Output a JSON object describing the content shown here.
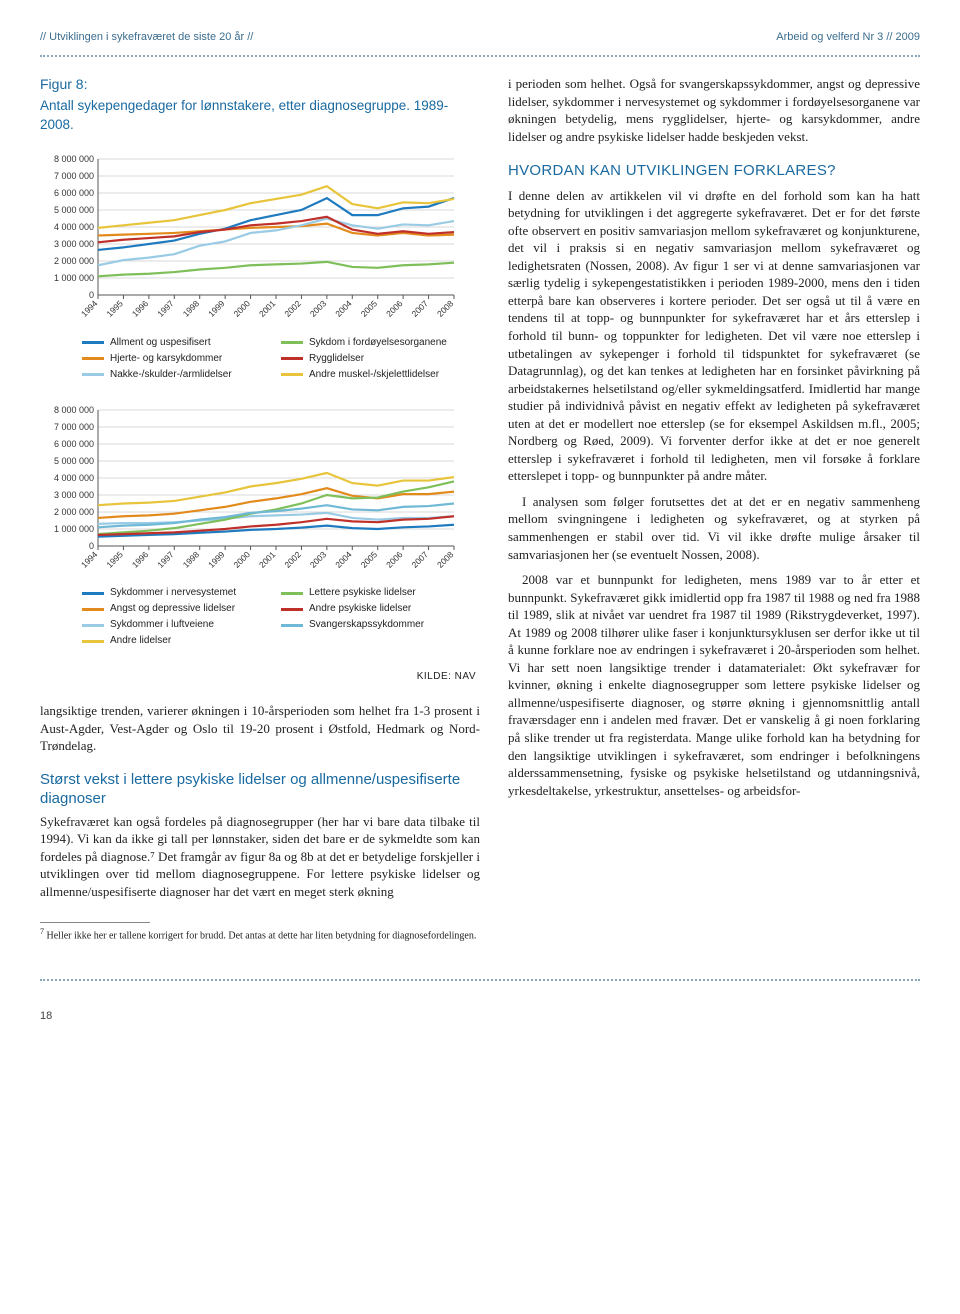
{
  "header": {
    "left": "// Utviklingen i sykefraværet de siste 20 år //",
    "right": "Arbeid og velferd Nr 3 // 2009"
  },
  "figure": {
    "title": "Figur 8:",
    "subtitle": "Antall sykepengedager for lønnstakere, etter diagnosegruppe. 1989-2008.",
    "kilde_label": "KILDE: NAV",
    "chart_a": {
      "type": "line",
      "ylim": [
        0,
        8000000
      ],
      "ytick_step": 1000000,
      "y_labels": [
        "0",
        "1 000 000",
        "2 000 000",
        "3 000 000",
        "4 000 000",
        "5 000 000",
        "6 000 000",
        "7 000 000",
        "8 000 000"
      ],
      "x_labels": [
        "1994",
        "1995",
        "1996",
        "1997",
        "1998",
        "1999",
        "2000",
        "2001",
        "2002",
        "2003",
        "2004",
        "2005",
        "2006",
        "2007",
        "2008"
      ],
      "grid_color": "#d9d9d9",
      "axis_color": "#555",
      "series": [
        {
          "label": "Allment og uspesifisert",
          "color": "#1f7bbf",
          "values": [
            2650000,
            2800000,
            3000000,
            3200000,
            3600000,
            3900000,
            4400000,
            4700000,
            5000000,
            5700000,
            4700000,
            4700000,
            5100000,
            5200000,
            5700000
          ]
        },
        {
          "label": "Hjerte- og karsykdommer",
          "color": "#e28b1c",
          "values": [
            3500000,
            3550000,
            3600000,
            3650000,
            3750000,
            3850000,
            3950000,
            4000000,
            4050000,
            4200000,
            3650000,
            3500000,
            3650000,
            3500000,
            3550000
          ]
        },
        {
          "label": "Nakke-/skulder-/armlidelser",
          "color": "#99cbe4",
          "values": [
            1750000,
            2050000,
            2200000,
            2400000,
            2900000,
            3150000,
            3650000,
            3800000,
            4100000,
            4500000,
            4100000,
            3900000,
            4150000,
            4100000,
            4350000
          ]
        },
        {
          "label": "Sykdom i fordøyelsesorganene",
          "color": "#7fbf5a",
          "values": [
            1100000,
            1200000,
            1250000,
            1350000,
            1500000,
            1600000,
            1750000,
            1800000,
            1850000,
            1950000,
            1650000,
            1600000,
            1750000,
            1800000,
            1900000
          ]
        },
        {
          "label": "Rygglidelser",
          "color": "#c0302a",
          "values": [
            3100000,
            3250000,
            3350000,
            3450000,
            3700000,
            3850000,
            4100000,
            4200000,
            4350000,
            4600000,
            3850000,
            3600000,
            3750000,
            3600000,
            3700000
          ]
        },
        {
          "label": "Andre muskel-/skjelettlidelser",
          "color": "#e8c43b",
          "values": [
            3950000,
            4100000,
            4250000,
            4400000,
            4700000,
            5000000,
            5400000,
            5650000,
            5900000,
            6400000,
            5350000,
            5100000,
            5450000,
            5400000,
            5650000
          ]
        }
      ]
    },
    "chart_b": {
      "type": "line",
      "ylim": [
        0,
        8000000
      ],
      "ytick_step": 1000000,
      "y_labels": [
        "0",
        "1 000 000",
        "2 000 000",
        "3 000 000",
        "4 000 000",
        "5 000 000",
        "6 000 000",
        "7 000 000",
        "8 000 000"
      ],
      "x_labels": [
        "1994",
        "1995",
        "1996",
        "1997",
        "1998",
        "1999",
        "2000",
        "2001",
        "2002",
        "2003",
        "2004",
        "2005",
        "2006",
        "2007",
        "2008"
      ],
      "grid_color": "#d9d9d9",
      "axis_color": "#555",
      "series": [
        {
          "label": "Sykdommer i nervesystemet",
          "color": "#1f7bbf",
          "values": [
            550000,
            600000,
            650000,
            700000,
            780000,
            850000,
            950000,
            1000000,
            1080000,
            1200000,
            1050000,
            1000000,
            1100000,
            1150000,
            1250000
          ]
        },
        {
          "label": "Angst og depressive lidelser",
          "color": "#e28b1c",
          "values": [
            1650000,
            1750000,
            1800000,
            1900000,
            2100000,
            2300000,
            2600000,
            2800000,
            3050000,
            3400000,
            2950000,
            2800000,
            3050000,
            3050000,
            3200000
          ]
        },
        {
          "label": "Sykdommer i luftveiene",
          "color": "#99cbe4",
          "values": [
            1300000,
            1350000,
            1350000,
            1400000,
            1500000,
            1600000,
            1750000,
            1800000,
            1850000,
            1950000,
            1650000,
            1550000,
            1650000,
            1650000,
            1750000
          ]
        },
        {
          "label": "Andre lidelser",
          "color": "#e8c43b",
          "values": [
            2400000,
            2500000,
            2550000,
            2650000,
            2900000,
            3150000,
            3500000,
            3700000,
            3950000,
            4300000,
            3700000,
            3550000,
            3850000,
            3850000,
            4050000
          ]
        },
        {
          "label": "Lettere psykiske lidelser",
          "color": "#7fbf5a",
          "values": [
            700000,
            800000,
            900000,
            1050000,
            1300000,
            1550000,
            1900000,
            2150000,
            2500000,
            3000000,
            2800000,
            2850000,
            3200000,
            3450000,
            3800000
          ]
        },
        {
          "label": "Andre psykiske lidelser",
          "color": "#c0302a",
          "values": [
            650000,
            700000,
            750000,
            800000,
            900000,
            1000000,
            1150000,
            1250000,
            1400000,
            1600000,
            1450000,
            1400000,
            1550000,
            1600000,
            1750000
          ]
        },
        {
          "label": "Svangerskapssykdommer",
          "color": "#6fb9d6",
          "values": [
            1100000,
            1200000,
            1250000,
            1350000,
            1550000,
            1700000,
            1950000,
            2050000,
            2200000,
            2400000,
            2150000,
            2100000,
            2300000,
            2350000,
            2500000
          ]
        }
      ]
    }
  },
  "left_body": {
    "p1": "langsiktige trenden, varierer økningen i 10-årsperioden som helhet fra 1-3 prosent i Aust-Agder, Vest-Agder og Oslo til 19-20 prosent i Østfold, Hedmark og Nord-Trøndelag.",
    "h3": "Størst vekst i lettere psykiske lidelser og allmenne/uspesifiserte diagnoser",
    "p2": "Sykefraværet kan også fordeles på diagnosegrupper (her har vi bare data tilbake til 1994). Vi kan da ikke gi tall per lønnstaker, siden det bare er de sykmeldte som kan fordeles på diagnose.⁷ Det framgår av figur 8a og 8b at det er betydelige forskjeller i utviklingen over tid mellom diagnosegruppene. For lettere psykiske lidelser og allmenne/uspesifiserte diagnoser har det vært en meget sterk økning"
  },
  "footnote": {
    "num": "7",
    "text": "Heller ikke her er tallene korrigert for brudd. Det antas at dette har liten betydning for diagnosefordelingen."
  },
  "right_body": {
    "p1": "i perioden som helhet. Også for svangerskapssykdommer, angst og depressive lidelser, sykdommer i nervesystemet og sykdommer i fordøyelsesorganene var økningen betydelig, mens rygglidelser, hjerte- og karsykdommer, andre lidelser og andre psykiske lidelser hadde beskjeden vekst.",
    "h2": "HVORDAN KAN UTVIKLINGEN FORKLARES?",
    "p2": "I denne delen av artikkelen vil vi drøfte en del forhold som kan ha hatt betydning for utviklingen i det aggregerte sykefraværet. Det er for det første ofte observert en positiv samvariasjon mellom sykefraværet og konjunkturene, det vil i praksis si en negativ samvariasjon mellom sykefraværet og ledighetsraten (Nossen, 2008). Av figur 1 ser vi at denne samvariasjonen var særlig tydelig i sykepengestatistikken i perioden 1989-2000, mens den i tiden etterpå bare kan observeres i kortere perioder. Det ser også ut til å være en tendens til at topp- og bunnpunkter for sykefraværet har et års etterslep i forhold til bunn- og toppunkter for ledigheten. Det vil være noe etterslep i utbetalingen av sykepenger i forhold til tidspunktet for sykefraværet (se Datagrunnlag), og det kan tenkes at ledigheten har en forsinket påvirkning på arbeidstakernes helsetilstand og/eller sykmeldingsatferd. Imidlertid har mange studier på individnivå påvist en negativ effekt av ledigheten på sykefraværet uten at det er modellert noe etterslep (se for eksempel Askildsen m.fl., 2005; Nordberg og Røed, 2009). Vi forventer derfor ikke at det er noe generelt etterslep i sykefraværet i forhold til ledigheten, men vil forsøke å forklare etterslepet i topp- og bunnpunkter på andre måter.",
    "p3": "I analysen som følger forutsettes det at det er en negativ sammenheng mellom svingningene i ledigheten og sykefraværet, og at styrken på sammenhengen er stabil over tid. Vi vil ikke drøfte mulige årsaker til samvariasjonen her (se eventuelt Nossen, 2008).",
    "p4": "2008 var et bunnpunkt for ledigheten, mens 1989 var to år etter et bunnpunkt. Sykefraværet gikk imidlertid opp fra 1987 til 1988 og ned fra 1988 til 1989, slik at nivået var uendret fra 1987 til 1989 (Rikstrygdeverket, 1997). At 1989 og 2008 tilhører ulike faser i konjunktursyklusen ser derfor ikke ut til å kunne forklare noe av endringen i sykefraværet i 20-årsperioden som helhet. Vi har sett noen langsiktige trender i datamaterialet: Økt sykefravær for kvinner, økning i enkelte diagnosegrupper som lettere psykiske lidelser og allmenne/uspesifiserte diagnoser, og større økning i gjennomsnittlig antall fraværsdager enn i andelen med fravær. Det er vanskelig å gi noen forklaring på slike trender ut fra registerdata. Mange ulike forhold kan ha betydning for den langsiktige utviklingen i sykefraværet, som endringer i befolkningens alderssammensetning, fysiske og psykiske helsetilstand og utdanningsnivå, yrkesdeltakelse, yrkestruktur, ansettelses- og arbeidsfor-"
  },
  "page_number": "18"
}
